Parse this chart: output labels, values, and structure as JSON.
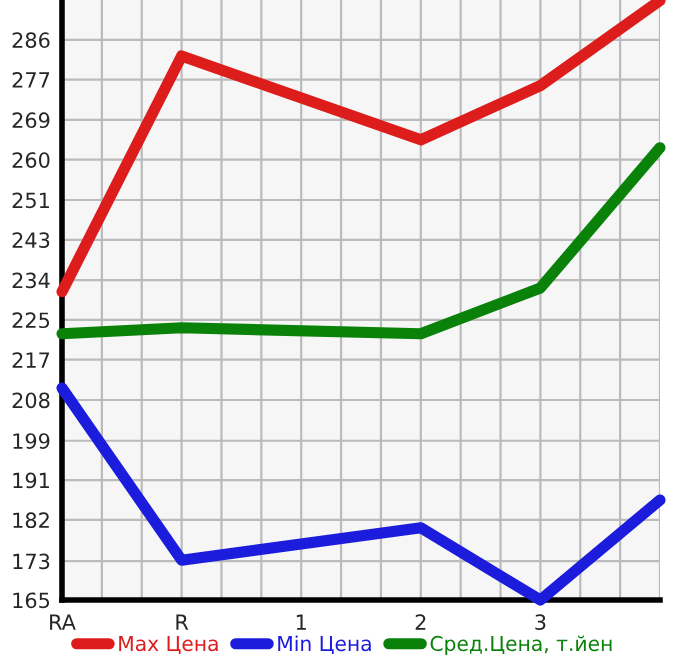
{
  "chart_data": {
    "type": "line",
    "categories": [
      "RA",
      "R",
      "1",
      "2",
      "3",
      null
    ],
    "series": [
      {
        "name": "Max Цена",
        "color": "#dd1c1c",
        "values": [
          231.6,
          282.5,
          null,
          264.4,
          276.1,
          294.5
        ]
      },
      {
        "name": "Min Цена",
        "color": "#1c1cdd",
        "values": [
          210.8,
          173.6,
          null,
          180.6,
          165,
          186.6
        ]
      },
      {
        "name": "Сред.Цена, т.йен",
        "color": "#0a820a",
        "values": [
          222.5,
          223.8,
          null,
          222.5,
          232.4,
          262.7
        ]
      }
    ],
    "ylim": [
      165,
      294.6
    ],
    "yticks": [
      165,
      {
        "value": 173.4,
        "label": "173"
      },
      {
        "value": 182.3,
        "label": "182"
      },
      {
        "value": 190.9,
        "label": "191"
      },
      {
        "value": 199.4,
        "label": "199"
      },
      {
        "value": 208.2,
        "label": "208"
      },
      {
        "value": 216.9,
        "label": "217"
      },
      {
        "value": 225.5,
        "label": "225"
      },
      {
        "value": 234.1,
        "label": "234"
      },
      {
        "value": 242.8,
        "label": "243"
      },
      {
        "value": 251.4,
        "label": "251"
      },
      {
        "value": 260.1,
        "label": "260"
      },
      {
        "value": 268.7,
        "label": "269"
      },
      {
        "value": 277.4,
        "label": "277"
      },
      286
    ],
    "grid": true,
    "legend": "bottom",
    "marker": "none",
    "line_style": "solid"
  }
}
